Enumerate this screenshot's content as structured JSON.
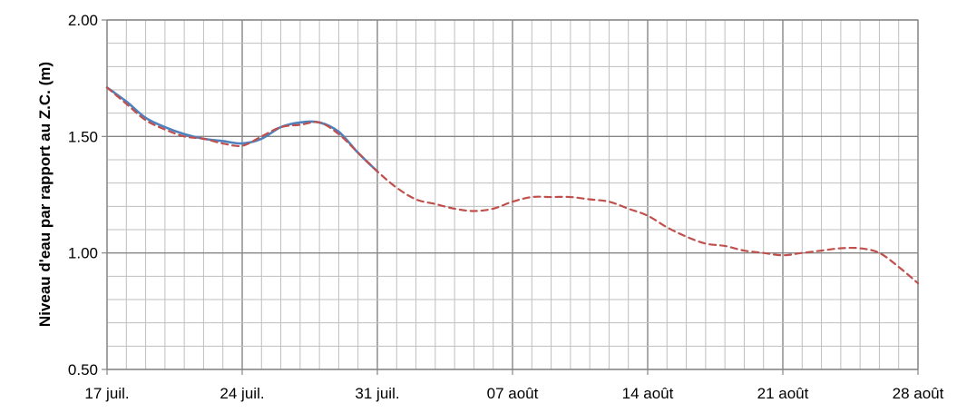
{
  "chart_data": {
    "type": "line",
    "title": "",
    "xlabel": "",
    "ylabel": "Niveau d'eau par rapport au Z.C. (m)",
    "x_tick_labels": [
      "17 juil.",
      "24 juil.",
      "31 juil.",
      "07 août",
      "14 août",
      "21 août",
      "28 août"
    ],
    "y_tick_labels": [
      "0.50",
      "1.00",
      "1.50",
      "2.00"
    ],
    "xlim": [
      "17 juil.",
      "28 août"
    ],
    "ylim": [
      0.5,
      2.0
    ],
    "grid": true,
    "legend": "none",
    "series": [
      {
        "color": "#4f81bd",
        "style": "solid",
        "x": [
          "17 juil.",
          "18 juil.",
          "19 juil.",
          "20 juil.",
          "21 juil.",
          "22 juil.",
          "23 juil.",
          "24 juil.",
          "25 juil.",
          "26 juil.",
          "27 juil.",
          "28 juil.",
          "29 juil.",
          "30 juil.",
          "31 juil."
        ],
        "y": [
          1.71,
          1.65,
          1.58,
          1.54,
          1.51,
          1.49,
          1.48,
          1.47,
          1.49,
          1.54,
          1.56,
          1.56,
          1.52,
          1.43,
          1.35
        ]
      },
      {
        "color": "#c0504d",
        "style": "dashed",
        "x": [
          "17 juil.",
          "18 juil.",
          "19 juil.",
          "20 juil.",
          "21 juil.",
          "22 juil.",
          "23 juil.",
          "24 juil.",
          "25 juil.",
          "26 juil.",
          "27 juil.",
          "28 juil.",
          "29 juil.",
          "30 juil.",
          "31 juil.",
          "01 août",
          "02 août",
          "03 août",
          "04 août",
          "05 août",
          "06 août",
          "07 août",
          "08 août",
          "09 août",
          "10 août",
          "11 août",
          "12 août",
          "13 août",
          "14 août",
          "15 août",
          "16 août",
          "17 août",
          "18 août",
          "19 août",
          "20 août",
          "21 août",
          "22 août",
          "23 août",
          "24 août",
          "25 août",
          "26 août",
          "27 août",
          "28 août"
        ],
        "y": [
          1.71,
          1.64,
          1.57,
          1.53,
          1.5,
          1.49,
          1.47,
          1.46,
          1.5,
          1.54,
          1.55,
          1.56,
          1.51,
          1.43,
          1.35,
          1.28,
          1.23,
          1.21,
          1.19,
          1.18,
          1.19,
          1.22,
          1.24,
          1.24,
          1.24,
          1.23,
          1.22,
          1.19,
          1.16,
          1.11,
          1.07,
          1.04,
          1.03,
          1.01,
          1.0,
          0.99,
          1.0,
          1.01,
          1.02,
          1.02,
          1.0,
          0.94,
          0.87
        ]
      }
    ]
  }
}
